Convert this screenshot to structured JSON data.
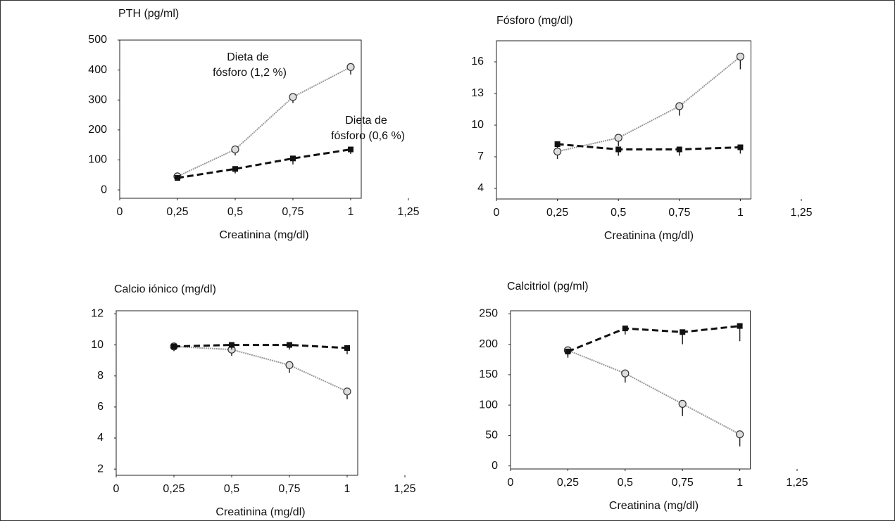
{
  "chart_data": [
    {
      "type": "line",
      "title": "PTH (pg/ml)",
      "xlabel": "Creatinina (mg/dl)",
      "x": [
        0.25,
        0.5,
        0.75,
        1
      ],
      "xlim": [
        0,
        1.25
      ],
      "xticks": [
        0,
        {
          "value": 0.25,
          "label": "0,25"
        },
        {
          "value": 0.5,
          "label": "0,5"
        },
        {
          "value": 0.75,
          "label": "0,75"
        },
        1,
        {
          "value": 1.25,
          "label": "1,25"
        }
      ],
      "ylim": [
        -28,
        500
      ],
      "yticks": [
        0,
        100,
        200,
        300,
        400,
        500
      ],
      "annotations": [
        [
          "Dieta de",
          "fósforo (1,2 %)"
        ],
        [
          "Dieta de",
          "fósforo (0,6 %)"
        ]
      ],
      "series": [
        {
          "color": "#9a9a9a",
          "marker": "circle",
          "linestyle": "dotted",
          "values": [
            45,
            135,
            310,
            410
          ],
          "errors": [
            5,
            20,
            20,
            25
          ]
        },
        {
          "color": "#111111",
          "marker": "square",
          "linestyle": "dashed",
          "values": [
            40,
            70,
            105,
            135
          ],
          "errors": [
            5,
            15,
            20,
            15
          ]
        }
      ]
    },
    {
      "type": "line",
      "title": "Fósforo (mg/dl)",
      "xlabel": "Creatinina (mg/dl)",
      "x": [
        0.25,
        0.5,
        0.75,
        1
      ],
      "xlim": [
        0,
        1.25
      ],
      "xticks": [
        0,
        {
          "value": 0.25,
          "label": "0,25"
        },
        {
          "value": 0.5,
          "label": "0,5"
        },
        {
          "value": 0.75,
          "label": "0,75"
        },
        1,
        {
          "value": 1.25,
          "label": "1,25"
        }
      ],
      "ylim": [
        3,
        18
      ],
      "yticks": [
        4,
        7,
        10,
        13,
        16
      ],
      "series": [
        {
          "color": "#9a9a9a",
          "marker": "circle",
          "linestyle": "dotted",
          "values": [
            7.5,
            8.8,
            11.8,
            16.5
          ],
          "errors": [
            0.7,
            0.8,
            0.9,
            1.2
          ]
        },
        {
          "color": "#111111",
          "marker": "square",
          "linestyle": "dashed",
          "values": [
            8.2,
            7.7,
            7.7,
            7.9
          ],
          "errors": [
            0.4,
            0.6,
            0.6,
            0.6
          ]
        }
      ]
    },
    {
      "type": "line",
      "title": "Calcio iónico (mg/dl)",
      "xlabel": "Creatinina (mg/dl)",
      "x": [
        0.25,
        0.5,
        0.75,
        1
      ],
      "xlim": [
        0,
        1.25
      ],
      "xticks": [
        0,
        {
          "value": 0.25,
          "label": "0,25"
        },
        {
          "value": 0.5,
          "label": "0,5"
        },
        {
          "value": 0.75,
          "label": "0,75"
        },
        1,
        {
          "value": 1.25,
          "label": "1,25"
        }
      ],
      "ylim": [
        1.6,
        12.2
      ],
      "yticks": [
        2,
        4,
        6,
        8,
        10,
        12
      ],
      "series": [
        {
          "color": "#9a9a9a",
          "marker": "circle",
          "linestyle": "dotted",
          "values": [
            9.9,
            9.7,
            8.7,
            7.0
          ],
          "errors": [
            0.3,
            0.4,
            0.5,
            0.5
          ]
        },
        {
          "color": "#111111",
          "marker": "square",
          "linestyle": "dashed",
          "values": [
            9.9,
            10.0,
            10.0,
            9.8
          ],
          "errors": [
            0.2,
            0.3,
            0.3,
            0.4
          ]
        }
      ]
    },
    {
      "type": "line",
      "title": "Calcitriol (pg/ml)",
      "xlabel": "Creatinina (mg/dl)",
      "x": [
        0.25,
        0.5,
        0.75,
        1
      ],
      "xlim": [
        0,
        1.25
      ],
      "xticks": [
        0,
        {
          "value": 0.25,
          "label": "0,25"
        },
        {
          "value": 0.5,
          "label": "0,5"
        },
        {
          "value": 0.75,
          "label": "0,75"
        },
        1,
        {
          "value": 1.25,
          "label": "1,25"
        }
      ],
      "ylim": [
        -5,
        255
      ],
      "yticks": [
        0,
        50,
        100,
        150,
        200,
        250
      ],
      "series": [
        {
          "color": "#9a9a9a",
          "marker": "circle",
          "linestyle": "dotted",
          "values": [
            190,
            152,
            102,
            52
          ],
          "errors": [
            10,
            15,
            20,
            20
          ]
        },
        {
          "color": "#111111",
          "marker": "square",
          "linestyle": "dashed",
          "values": [
            188,
            226,
            220,
            230
          ],
          "errors": [
            10,
            10,
            20,
            25
          ]
        }
      ]
    }
  ]
}
